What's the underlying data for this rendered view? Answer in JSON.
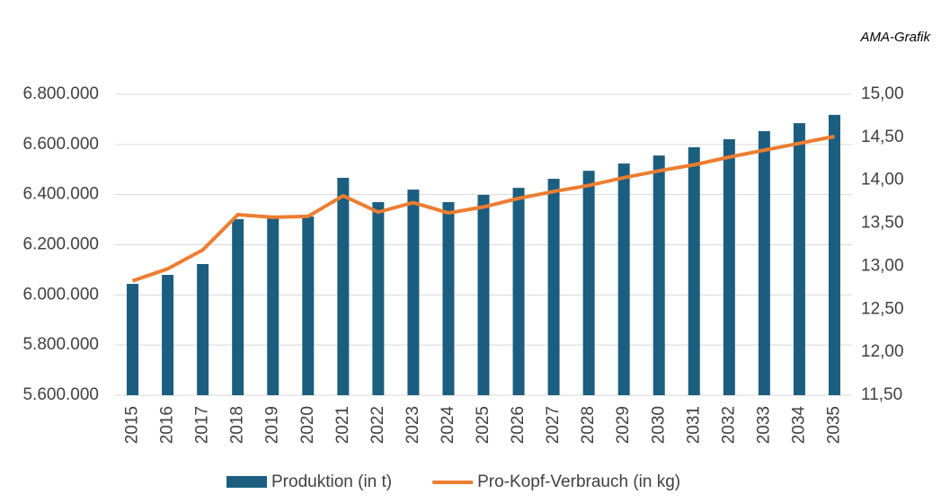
{
  "chart_data": {
    "type": "bar_line",
    "annotation": "AMA-Grafik",
    "categories": [
      "2015",
      "2016",
      "2017",
      "2018",
      "2019",
      "2020",
      "2021",
      "2022",
      "2023",
      "2024",
      "2025",
      "2026",
      "2027",
      "2028",
      "2029",
      "2030",
      "2031",
      "2032",
      "2033",
      "2034",
      "2035"
    ],
    "series": [
      {
        "name": "Produktion (in t)",
        "type": "bar",
        "color": "#1b5e80",
        "values": [
          6044000,
          6080000,
          6123000,
          6302000,
          6309000,
          6313000,
          6467000,
          6370000,
          6420000,
          6370000,
          6399000,
          6427000,
          6463000,
          6495000,
          6524000,
          6556000,
          6589000,
          6621000,
          6653000,
          6685000,
          6718000
        ]
      },
      {
        "name": "Pro-Kopf-Verbrauch (in kg)",
        "type": "line",
        "axis": "y2",
        "color": "#ed7d31",
        "values": [
          12.83,
          12.97,
          13.19,
          13.6,
          13.57,
          13.58,
          13.82,
          13.63,
          13.74,
          13.62,
          13.69,
          13.79,
          13.87,
          13.94,
          14.03,
          14.11,
          14.18,
          14.27,
          14.35,
          14.43,
          14.51
        ]
      }
    ],
    "ylim": [
      5600000,
      6800000
    ],
    "yticks": [
      {
        "value": 5600000,
        "label": "5.600.000"
      },
      {
        "value": 5800000,
        "label": "5.800.000"
      },
      {
        "value": 6000000,
        "label": "6.000.000"
      },
      {
        "value": 6200000,
        "label": "6.200.000"
      },
      {
        "value": 6400000,
        "label": "6.400.000"
      },
      {
        "value": 6600000,
        "label": "6.600.000"
      },
      {
        "value": 6800000,
        "label": "6.800.000"
      }
    ],
    "y2lim": [
      11.5,
      15
    ],
    "y2ticks": [
      {
        "value": 11.5,
        "label": "11,50"
      },
      {
        "value": 12,
        "label": "12,00"
      },
      {
        "value": 12.5,
        "label": "12,50"
      },
      {
        "value": 13,
        "label": "13,00"
      },
      {
        "value": 13.5,
        "label": "13,50"
      },
      {
        "value": 14,
        "label": "14,00"
      },
      {
        "value": 14.5,
        "label": "14,50"
      },
      {
        "value": 15,
        "label": "15,00"
      }
    ],
    "grid": true,
    "legend": "bottom"
  }
}
